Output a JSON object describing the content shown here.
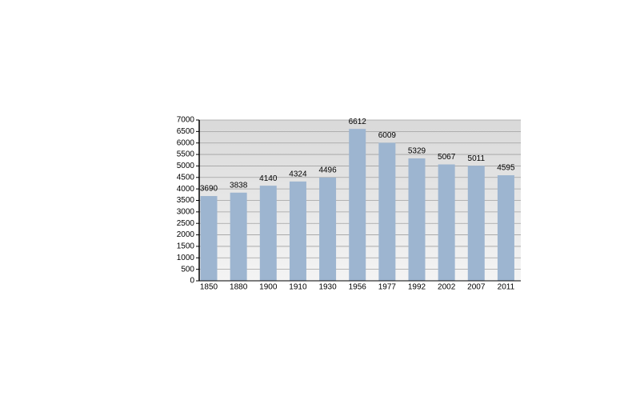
{
  "chart_data": {
    "type": "bar",
    "categories": [
      "1850",
      "1880",
      "1900",
      "1910",
      "1930",
      "1956",
      "1977",
      "1992",
      "2002",
      "2007",
      "2011"
    ],
    "values": [
      3690,
      3838,
      4140,
      4324,
      4496,
      6612,
      6009,
      5329,
      5067,
      5011,
      4595
    ],
    "color": "#9db5d0",
    "ylim": [
      0,
      7000
    ],
    "yticks": [
      0,
      500,
      1000,
      1500,
      2000,
      2500,
      3000,
      3500,
      4000,
      4500,
      5000,
      5500,
      6000,
      6500,
      7000
    ],
    "grid": true
  }
}
